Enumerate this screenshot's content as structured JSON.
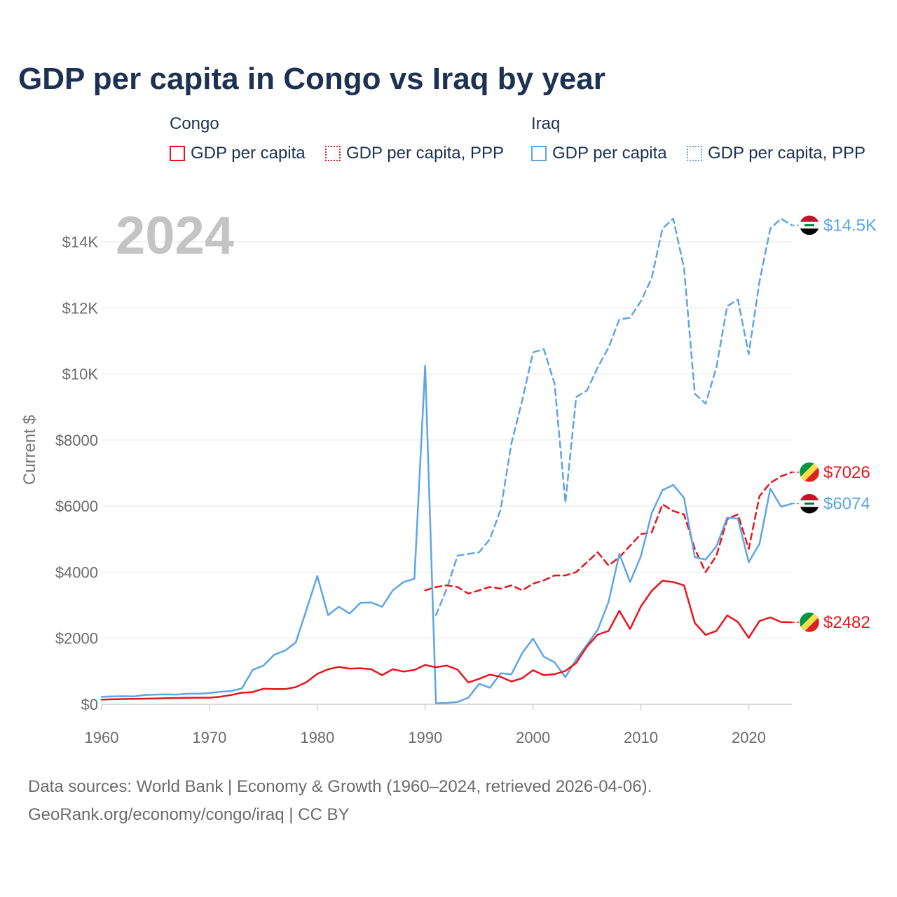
{
  "title": "GDP per capita in Congo vs Iraq by year",
  "legend": {
    "groups": [
      {
        "country": "Congo",
        "items": [
          "GDP per capita",
          "GDP per capita, PPP"
        ],
        "color": "#e8141b"
      },
      {
        "country": "Iraq",
        "items": [
          "GDP per capita",
          "GDP per capita, PPP"
        ],
        "color": "#5ea5e6"
      }
    ]
  },
  "footer": {
    "line1": "Data sources: World Bank | Economy & Growth (1960–2024, retrieved 2026-04-06).",
    "line2": "GeoRank.org/economy/congo/iraq | CC BY"
  },
  "chart_data": {
    "type": "line",
    "title": "GDP per capita in Congo vs Iraq by year",
    "overlay_label": "2024",
    "xlabel": "",
    "ylabel": "Current $",
    "xlim": [
      1960,
      2024
    ],
    "ylim": [
      0,
      15000
    ],
    "grid": true,
    "x_ticks": [
      1960,
      1970,
      1980,
      1990,
      2000,
      2010,
      2020
    ],
    "y_ticks": [
      {
        "value": 0,
        "label": "$0"
      },
      {
        "value": 2000,
        "label": "$2000"
      },
      {
        "value": 4000,
        "label": "$4000"
      },
      {
        "value": 6000,
        "label": "$6000"
      },
      {
        "value": 8000,
        "label": "$8000"
      },
      {
        "value": 10000,
        "label": "$10K"
      },
      {
        "value": 12000,
        "label": "$12K"
      },
      {
        "value": 14000,
        "label": "$14K"
      }
    ],
    "series": [
      {
        "name": "Iraq GDP per capita, PPP",
        "country": "Iraq",
        "color": "#5ea5e6",
        "dash": true,
        "start_year": 1991,
        "values": [
          2700,
          3500,
          4500,
          4550,
          4600,
          5000,
          5900,
          7900,
          9200,
          10650,
          10750,
          9700,
          6100,
          9300,
          9500,
          10200,
          10800,
          11650,
          11700,
          12200,
          12900,
          14400,
          14700,
          13200,
          9400,
          9100,
          10200,
          12050,
          12250,
          10600,
          12800,
          14400,
          14700,
          14500
        ],
        "end_label": "$14.5K"
      },
      {
        "name": "Congo GDP per capita, PPP",
        "country": "Congo",
        "color": "#e8141b",
        "dash": true,
        "start_year": 1990,
        "values": [
          3450,
          3550,
          3600,
          3550,
          3350,
          3450,
          3550,
          3500,
          3600,
          3450,
          3650,
          3750,
          3900,
          3900,
          4000,
          4300,
          4600,
          4200,
          4450,
          4800,
          5150,
          5200,
          6050,
          5850,
          5750,
          4700,
          4000,
          4500,
          5600,
          5750,
          4700,
          6300,
          6700,
          6900,
          7026
        ],
        "end_label": "$7026"
      },
      {
        "name": "Iraq GDP per capita",
        "country": "Iraq",
        "color": "#5ea5e6",
        "dash": false,
        "start_year": 1960,
        "values": [
          230,
          240,
          245,
          240,
          280,
          295,
          300,
          295,
          320,
          320,
          340,
          380,
          400,
          480,
          1040,
          1170,
          1500,
          1620,
          1870,
          2870,
          3880,
          2700,
          2950,
          2750,
          3070,
          3080,
          2950,
          3450,
          3700,
          3800,
          10250,
          30,
          40,
          70,
          200,
          620,
          500,
          940,
          910,
          1550,
          1990,
          1440,
          1270,
          820,
          1360,
          1800,
          2260,
          3100,
          4550,
          3700,
          4480,
          5780,
          6480,
          6640,
          6250,
          4450,
          4380,
          4780,
          5650,
          5620,
          4300,
          4860,
          6530,
          5980,
          6074
        ],
        "end_label": "$6074"
      },
      {
        "name": "Congo GDP per capita",
        "country": "Congo",
        "color": "#e8141b",
        "dash": false,
        "start_year": 1960,
        "values": [
          140,
          150,
          160,
          165,
          170,
          175,
          185,
          190,
          195,
          200,
          200,
          230,
          280,
          350,
          370,
          470,
          460,
          460,
          520,
          670,
          920,
          1060,
          1130,
          1080,
          1090,
          1060,
          880,
          1060,
          990,
          1040,
          1190,
          1120,
          1170,
          1050,
          660,
          770,
          900,
          830,
          690,
          790,
          1030,
          880,
          910,
          1010,
          1250,
          1750,
          2110,
          2220,
          2830,
          2280,
          2960,
          3430,
          3740,
          3700,
          3600,
          2460,
          2100,
          2220,
          2690,
          2490,
          2010,
          2520,
          2630,
          2490,
          2482
        ],
        "end_label": "$2482"
      }
    ]
  }
}
